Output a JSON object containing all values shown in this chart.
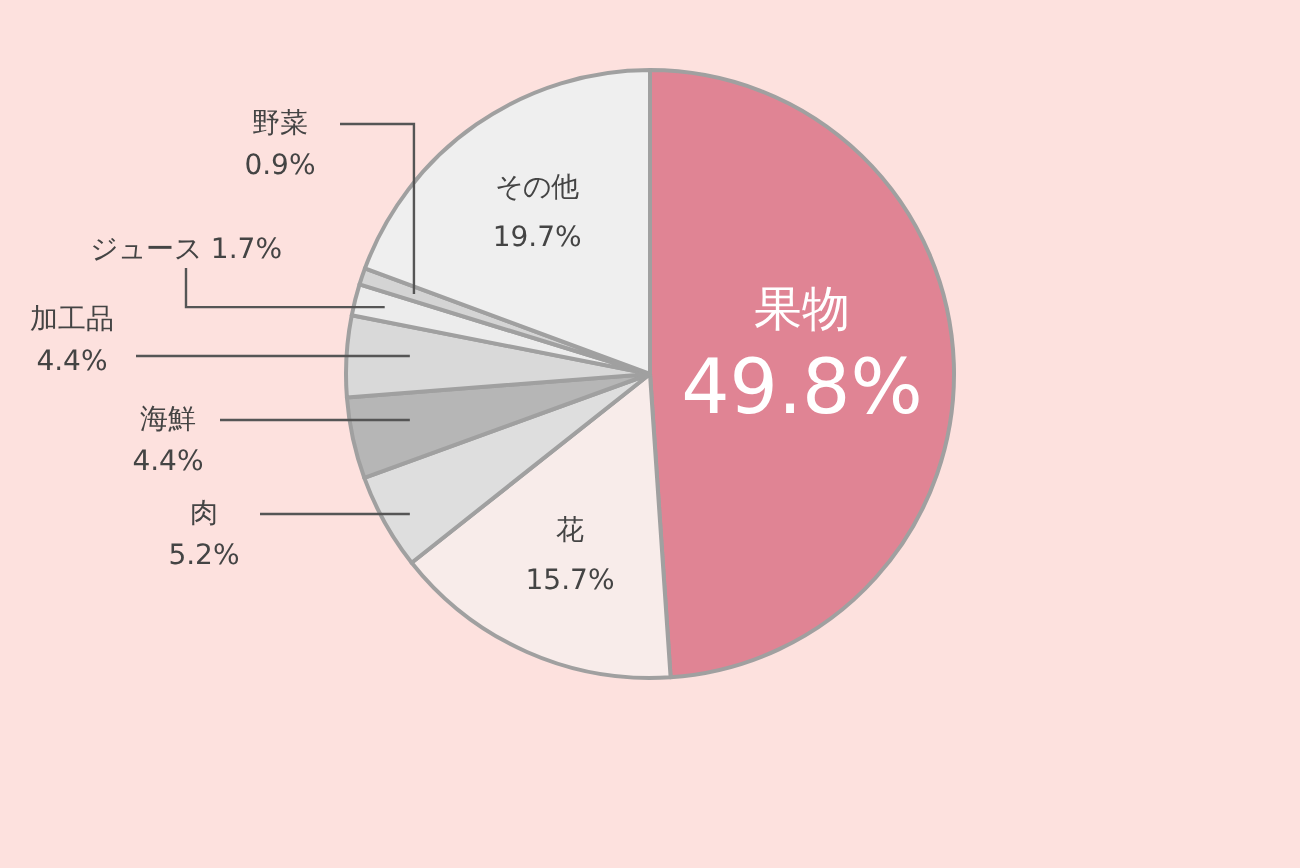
{
  "chart_data": {
    "type": "pie",
    "categories": [
      "果物",
      "花",
      "肉",
      "海鮮",
      "加工品",
      "ジュース",
      "野菜",
      "その他"
    ],
    "values": [
      49.8,
      15.7,
      5.2,
      4.4,
      4.4,
      1.7,
      0.9,
      19.7
    ],
    "colors": [
      "#e08494",
      "#f8ecea",
      "#dedede",
      "#b6b6b6",
      "#d9d9d9",
      "#ececec",
      "#d4d4d4",
      "#efefef"
    ],
    "value_labels": [
      "49.8%",
      "15.7%",
      "5.2%",
      "4.4%",
      "4.4%",
      "1.7%",
      "0.9%",
      "19.7%"
    ]
  }
}
